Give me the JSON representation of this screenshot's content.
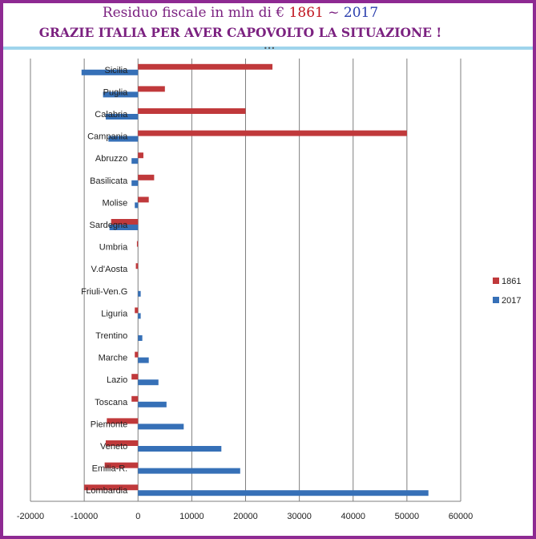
{
  "header": {
    "title_prefix": "Residuo fiscale in mln di € ",
    "year_1": "1861",
    "title_sep": " ~ ",
    "year_2": "2017",
    "subtitle": "GRAZIE ITALIA PER AVER CAPOVOLTO LA SITUAZIONE !"
  },
  "colors": {
    "frame": "#8e2a92",
    "series_1861": "#c0393b",
    "series_2017": "#3670b7"
  },
  "chart_data": {
    "type": "bar",
    "orientation": "horizontal",
    "categories": [
      "Sicilia",
      "Puglia",
      "Calabria",
      "Campania",
      "Abruzzo",
      "Basilicata",
      "Molise",
      "Sardegna",
      "Umbria",
      "V.d'Aosta",
      "Friuli-Ven.G",
      "Liguria",
      "Trentino",
      "Marche",
      "Lazio",
      "Toscana",
      "Piemonte",
      "Veneto",
      "Emilia-R.",
      "Lombardia"
    ],
    "series": [
      {
        "name": "1861",
        "color": "#c0393b",
        "values": [
          25000,
          5000,
          20000,
          50000,
          1000,
          3000,
          2000,
          -5000,
          -200,
          -400,
          0,
          -600,
          0,
          -600,
          -1200,
          -1200,
          -5800,
          -6000,
          -6200,
          -10000
        ]
      },
      {
        "name": "2017",
        "color": "#3670b7",
        "values": [
          -10500,
          -6500,
          -6000,
          -5500,
          -1200,
          -1200,
          -600,
          -5300,
          0,
          0,
          500,
          500,
          800,
          2000,
          3800,
          5300,
          8500,
          15500,
          19000,
          54000
        ]
      }
    ],
    "xlim": [
      -20000,
      60000
    ],
    "x_ticks": [
      "-20000",
      "-10000",
      "0",
      "10000",
      "20000",
      "30000",
      "40000",
      "50000",
      "60000"
    ],
    "grid": true,
    "legend": "right"
  }
}
